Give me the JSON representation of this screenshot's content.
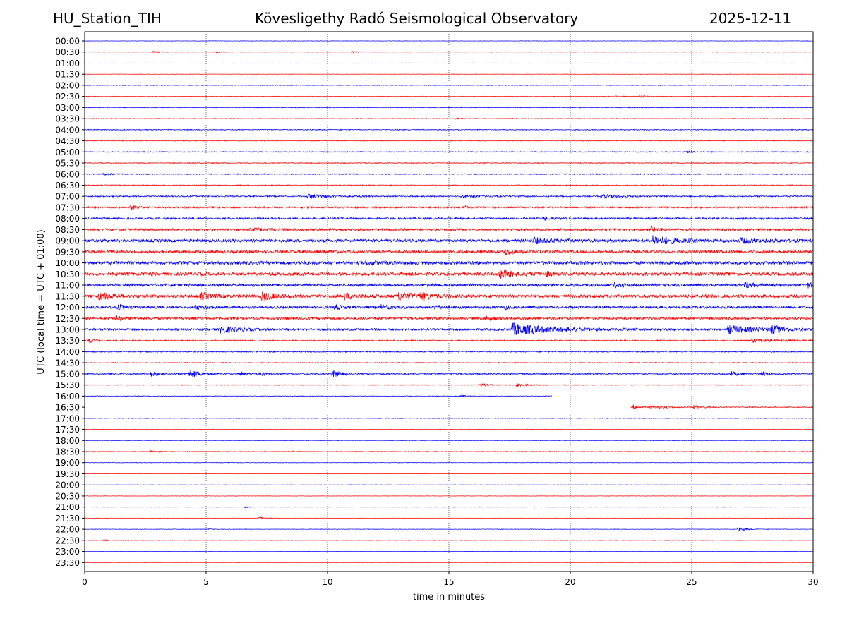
{
  "header": {
    "station": "HU_Station_TIH",
    "observatory": "Kövesligethy Radó Seismological Observatory",
    "date": "2025-12-11"
  },
  "colors": {
    "trace_a": "#0000ff",
    "trace_b": "#ff0000",
    "grid": "#000000",
    "axis": "#000000"
  },
  "chart_data": {
    "type": "line",
    "title": "Kövesligethy Radó Seismological Observatory",
    "xlabel": "time in minutes",
    "ylabel": "UTC (local time = UTC + 01:00)",
    "xlim": [
      0,
      30
    ],
    "x_ticks": [
      0,
      5,
      10,
      15,
      20,
      25,
      30
    ],
    "x_tick_labels": [
      "0",
      "5",
      "10",
      "15",
      "20",
      "25",
      "30"
    ],
    "vertical_grid_at": [
      5,
      10,
      15,
      20,
      25
    ],
    "grid": "dotted vertical lines",
    "series": [
      {
        "name": "00:00",
        "color": "blue",
        "start": 0,
        "end": 30,
        "noise": 0.3,
        "events": []
      },
      {
        "name": "00:30",
        "color": "red",
        "start": 0,
        "end": 30,
        "noise": 0.35,
        "events": [
          {
            "t": 2.8,
            "amp": 1.0,
            "dur": 0.3
          },
          {
            "t": 5.4,
            "amp": 0.8,
            "dur": 0.2
          },
          {
            "t": 11.0,
            "amp": 0.8,
            "dur": 0.2
          }
        ]
      },
      {
        "name": "01:00",
        "color": "blue",
        "start": 0,
        "end": 30,
        "noise": 0.3,
        "events": []
      },
      {
        "name": "01:30",
        "color": "red",
        "start": 0,
        "end": 30,
        "noise": 0.3,
        "events": []
      },
      {
        "name": "02:00",
        "color": "blue",
        "start": 0,
        "end": 30,
        "noise": 0.45,
        "events": []
      },
      {
        "name": "02:30",
        "color": "red",
        "start": 0,
        "end": 30,
        "noise": 0.45,
        "events": [
          {
            "t": 21.5,
            "amp": 0.9,
            "dur": 0.6
          },
          {
            "t": 22.9,
            "amp": 1.6,
            "dur": 0.2
          }
        ]
      },
      {
        "name": "03:00",
        "color": "blue",
        "start": 0,
        "end": 30,
        "noise": 0.55,
        "events": []
      },
      {
        "name": "03:30",
        "color": "red",
        "start": 0,
        "end": 30,
        "noise": 0.5,
        "events": [
          {
            "t": 15.3,
            "amp": 1.2,
            "dur": 0.1
          }
        ]
      },
      {
        "name": "04:00",
        "color": "blue",
        "start": 0,
        "end": 30,
        "noise": 0.65,
        "events": []
      },
      {
        "name": "04:30",
        "color": "red",
        "start": 0,
        "end": 30,
        "noise": 0.55,
        "events": []
      },
      {
        "name": "05:00",
        "color": "blue",
        "start": 0,
        "end": 30,
        "noise": 0.7,
        "events": [
          {
            "t": 24.8,
            "amp": 1.2,
            "dur": 0.3
          }
        ]
      },
      {
        "name": "05:30",
        "color": "red",
        "start": 0,
        "end": 30,
        "noise": 0.6,
        "events": []
      },
      {
        "name": "06:00",
        "color": "blue",
        "start": 0,
        "end": 30,
        "noise": 0.8,
        "events": [
          {
            "t": 0.8,
            "amp": 1.0,
            "dur": 0.4
          }
        ]
      },
      {
        "name": "06:30",
        "color": "red",
        "start": 0,
        "end": 30,
        "noise": 0.7,
        "events": []
      },
      {
        "name": "07:00",
        "color": "blue",
        "start": 0,
        "end": 30,
        "noise": 1.0,
        "events": [
          {
            "t": 9.2,
            "amp": 3.5,
            "dur": 0.7
          },
          {
            "t": 15.5,
            "amp": 1.5,
            "dur": 1.0
          },
          {
            "t": 21.2,
            "amp": 3.0,
            "dur": 0.6
          }
        ]
      },
      {
        "name": "07:30",
        "color": "red",
        "start": 0,
        "end": 30,
        "noise": 1.3,
        "events": [
          {
            "t": 1.9,
            "amp": 3.0,
            "dur": 0.2
          },
          {
            "t": 15.6,
            "amp": 1.5,
            "dur": 0.2
          }
        ]
      },
      {
        "name": "08:00",
        "color": "blue",
        "start": 0,
        "end": 30,
        "noise": 1.5,
        "events": [
          {
            "t": 18.9,
            "amp": 2.0,
            "dur": 0.3
          }
        ]
      },
      {
        "name": "08:30",
        "color": "red",
        "start": 0,
        "end": 30,
        "noise": 1.8,
        "events": [
          {
            "t": 6.8,
            "amp": 2.0,
            "dur": 1.0
          },
          {
            "t": 23.3,
            "amp": 3.0,
            "dur": 0.4
          }
        ]
      },
      {
        "name": "09:00",
        "color": "blue",
        "start": 0,
        "end": 30,
        "noise": 2.3,
        "events": [
          {
            "t": 18.5,
            "amp": 3.5,
            "dur": 0.8
          },
          {
            "t": 23.4,
            "amp": 6.0,
            "dur": 0.9
          },
          {
            "t": 27.0,
            "amp": 3.0,
            "dur": 0.8
          }
        ]
      },
      {
        "name": "09:30",
        "color": "red",
        "start": 0,
        "end": 30,
        "noise": 2.3,
        "events": [
          {
            "t": 17.3,
            "amp": 4.0,
            "dur": 0.4
          }
        ]
      },
      {
        "name": "10:00",
        "color": "blue",
        "start": 0,
        "end": 30,
        "noise": 2.5,
        "events": [
          {
            "t": 11.5,
            "amp": 2.0,
            "dur": 0.6
          }
        ]
      },
      {
        "name": "10:30",
        "color": "red",
        "start": 0,
        "end": 30,
        "noise": 2.5,
        "events": [
          {
            "t": 17.1,
            "amp": 6.5,
            "dur": 0.5
          },
          {
            "t": 19.0,
            "amp": 3.0,
            "dur": 0.2
          }
        ]
      },
      {
        "name": "11:00",
        "color": "blue",
        "start": 0,
        "end": 30,
        "noise": 2.3,
        "events": [
          {
            "t": 21.8,
            "amp": 3.0,
            "dur": 0.3
          },
          {
            "t": 27.2,
            "amp": 3.5,
            "dur": 0.3
          },
          {
            "t": 29.8,
            "amp": 3.0,
            "dur": 0.2
          }
        ]
      },
      {
        "name": "11:30",
        "color": "red",
        "start": 0,
        "end": 30,
        "noise": 2.5,
        "events": [
          {
            "t": 0.6,
            "amp": 5.0,
            "dur": 0.5
          },
          {
            "t": 4.8,
            "amp": 4.0,
            "dur": 0.5
          },
          {
            "t": 7.3,
            "amp": 5.5,
            "dur": 0.5
          },
          {
            "t": 10.7,
            "amp": 4.0,
            "dur": 0.5
          },
          {
            "t": 12.9,
            "amp": 6.0,
            "dur": 0.6
          },
          {
            "t": 13.8,
            "amp": 4.5,
            "dur": 0.4
          },
          {
            "t": 25.6,
            "amp": 3.0,
            "dur": 0.2
          }
        ]
      },
      {
        "name": "12:00",
        "color": "blue",
        "start": 0,
        "end": 30,
        "noise": 2.0,
        "events": [
          {
            "t": 1.4,
            "amp": 4.0,
            "dur": 0.2
          },
          {
            "t": 4.5,
            "amp": 2.5,
            "dur": 0.5
          },
          {
            "t": 10.3,
            "amp": 3.0,
            "dur": 0.3
          },
          {
            "t": 12.2,
            "amp": 3.0,
            "dur": 0.3
          },
          {
            "t": 14.4,
            "amp": 3.0,
            "dur": 0.3
          },
          {
            "t": 17.3,
            "amp": 3.5,
            "dur": 0.2
          }
        ]
      },
      {
        "name": "12:30",
        "color": "red",
        "start": 0,
        "end": 30,
        "noise": 1.8,
        "events": [
          {
            "t": 1.3,
            "amp": 3.0,
            "dur": 0.3
          },
          {
            "t": 16.5,
            "amp": 3.5,
            "dur": 0.3
          }
        ]
      },
      {
        "name": "13:00",
        "color": "blue",
        "start": 0,
        "end": 30,
        "noise": 1.7,
        "events": [
          {
            "t": 5.6,
            "amp": 4.5,
            "dur": 0.7
          },
          {
            "t": 17.6,
            "amp": 9.0,
            "dur": 1.4
          },
          {
            "t": 26.5,
            "amp": 5.5,
            "dur": 1.0
          },
          {
            "t": 28.3,
            "amp": 5.0,
            "dur": 0.5
          }
        ]
      },
      {
        "name": "13:30",
        "color": "red",
        "start": 0,
        "end": 30,
        "noise": 1.0,
        "events": [
          {
            "t": 0.2,
            "amp": 3.0,
            "dur": 0.2
          },
          {
            "t": 27.5,
            "amp": 2.0,
            "dur": 1.2
          }
        ]
      },
      {
        "name": "14:00",
        "color": "blue",
        "start": 0,
        "end": 30,
        "noise": 0.9,
        "events": []
      },
      {
        "name": "14:30",
        "color": "red",
        "start": 0,
        "end": 30,
        "noise": 0.7,
        "events": []
      },
      {
        "name": "15:00",
        "color": "blue",
        "start": 0,
        "end": 30,
        "noise": 1.0,
        "events": [
          {
            "t": 2.7,
            "amp": 3.5,
            "dur": 0.4
          },
          {
            "t": 4.3,
            "amp": 6.5,
            "dur": 0.4
          },
          {
            "t": 6.4,
            "amp": 3.0,
            "dur": 0.2
          },
          {
            "t": 7.2,
            "amp": 3.0,
            "dur": 0.2
          },
          {
            "t": 10.2,
            "amp": 5.5,
            "dur": 0.3
          },
          {
            "t": 26.6,
            "amp": 3.5,
            "dur": 0.3
          },
          {
            "t": 27.9,
            "amp": 4.0,
            "dur": 0.2
          }
        ]
      },
      {
        "name": "15:30",
        "color": "red",
        "start": 0,
        "end": 30,
        "noise": 0.6,
        "events": [
          {
            "t": 16.3,
            "amp": 2.0,
            "dur": 0.3
          },
          {
            "t": 17.8,
            "amp": 3.0,
            "dur": 0.3
          }
        ]
      },
      {
        "name": "16:00",
        "color": "blue",
        "start": 0,
        "end": 19.25,
        "noise": 0.5,
        "events": [
          {
            "t": 15.5,
            "amp": 1.5,
            "dur": 0.2
          }
        ]
      },
      {
        "name": "16:30",
        "color": "red",
        "start": 22.5,
        "end": 30,
        "noise": 0.7,
        "events": [
          {
            "t": 22.6,
            "amp": 3.0,
            "dur": 0.2
          },
          {
            "t": 23.3,
            "amp": 2.0,
            "dur": 0.6
          },
          {
            "t": 25.1,
            "amp": 3.0,
            "dur": 0.3
          }
        ]
      },
      {
        "name": "17:00",
        "color": "blue",
        "start": 0,
        "end": 30,
        "noise": 0.5,
        "events": []
      },
      {
        "name": "17:30",
        "color": "red",
        "start": 0,
        "end": 30,
        "noise": 0.4,
        "events": []
      },
      {
        "name": "18:00",
        "color": "blue",
        "start": 0,
        "end": 30,
        "noise": 0.4,
        "events": []
      },
      {
        "name": "18:30",
        "color": "red",
        "start": 0,
        "end": 30,
        "noise": 0.45,
        "events": [
          {
            "t": 2.7,
            "amp": 1.2,
            "dur": 0.4
          },
          {
            "t": 8.6,
            "amp": 1.0,
            "dur": 0.2
          }
        ]
      },
      {
        "name": "19:00",
        "color": "blue",
        "start": 0,
        "end": 30,
        "noise": 0.35,
        "events": []
      },
      {
        "name": "19:30",
        "color": "red",
        "start": 0,
        "end": 30,
        "noise": 0.3,
        "events": []
      },
      {
        "name": "20:00",
        "color": "blue",
        "start": 0,
        "end": 30,
        "noise": 0.3,
        "events": []
      },
      {
        "name": "20:30",
        "color": "red",
        "start": 0,
        "end": 30,
        "noise": 0.3,
        "events": []
      },
      {
        "name": "21:00",
        "color": "blue",
        "start": 0,
        "end": 30,
        "noise": 0.3,
        "events": [
          {
            "t": 6.6,
            "amp": 1.0,
            "dur": 0.2
          }
        ]
      },
      {
        "name": "21:30",
        "color": "red",
        "start": 0,
        "end": 30,
        "noise": 0.3,
        "events": [
          {
            "t": 7.2,
            "amp": 2.0,
            "dur": 0.15
          }
        ]
      },
      {
        "name": "22:00",
        "color": "blue",
        "start": 0,
        "end": 30,
        "noise": 0.35,
        "events": [
          {
            "t": 5.1,
            "amp": 1.0,
            "dur": 0.1
          },
          {
            "t": 26.9,
            "amp": 3.0,
            "dur": 0.3
          }
        ]
      },
      {
        "name": "22:30",
        "color": "red",
        "start": 0,
        "end": 30,
        "noise": 0.4,
        "events": [
          {
            "t": 0.8,
            "amp": 1.0,
            "dur": 0.4
          }
        ]
      },
      {
        "name": "23:00",
        "color": "blue",
        "start": 0,
        "end": 30,
        "noise": 0.3,
        "events": []
      },
      {
        "name": "23:30",
        "color": "red",
        "start": 0,
        "end": 30,
        "noise": 0.3,
        "events": []
      }
    ]
  }
}
